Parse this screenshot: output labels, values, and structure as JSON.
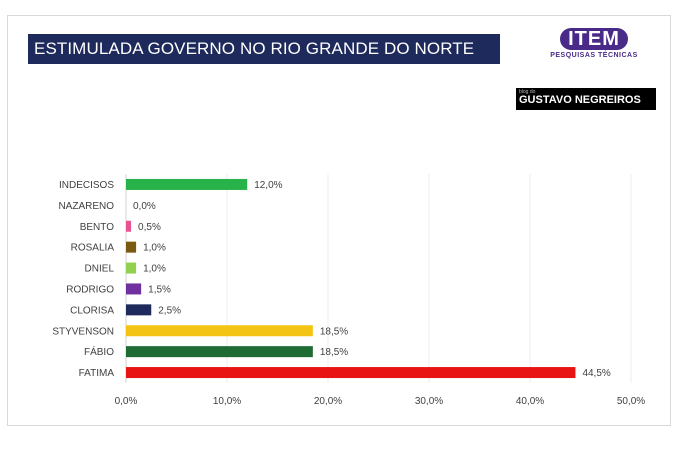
{
  "header": {
    "title": "ESTIMULADA GOVERNO NO RIO GRANDE DO NORTE",
    "logo_text": "ITEM",
    "logo_subtitle": "PESQUISAS TÉCNICAS",
    "stamp_prefix": "blog do",
    "stamp_name": "GUSTAVO NEGREIROS"
  },
  "chart_data": {
    "type": "bar",
    "orientation": "horizontal",
    "title": "ESTIMULADA GOVERNO NO RIO GRANDE DO NORTE",
    "categories": [
      "INDECISOS",
      "NAZARENO",
      "BENTO",
      "ROSALIA",
      "DNIEL",
      "RODRIGO",
      "CLORISA",
      "STYVENSON",
      "FÁBIO",
      "FATIMA"
    ],
    "values": [
      12.0,
      0.0,
      0.5,
      1.0,
      1.0,
      1.5,
      2.5,
      18.5,
      18.5,
      44.5
    ],
    "value_labels": [
      "12,0%",
      "0,0%",
      "0,5%",
      "1,0%",
      "1,0%",
      "1,5%",
      "2,5%",
      "18,5%",
      "18,5%",
      "44,5%"
    ],
    "colors": [
      "#27b34a",
      "#ffffff",
      "#e8538f",
      "#7a5a12",
      "#92d050",
      "#7030a0",
      "#1f2a5c",
      "#f4c414",
      "#1e6b34",
      "#e81414"
    ],
    "xlim": [
      0,
      50
    ],
    "xticks": [
      "0,0%",
      "10,0%",
      "20,0%",
      "30,0%",
      "40,0%",
      "50,0%"
    ],
    "grid": true,
    "legend": "none"
  }
}
